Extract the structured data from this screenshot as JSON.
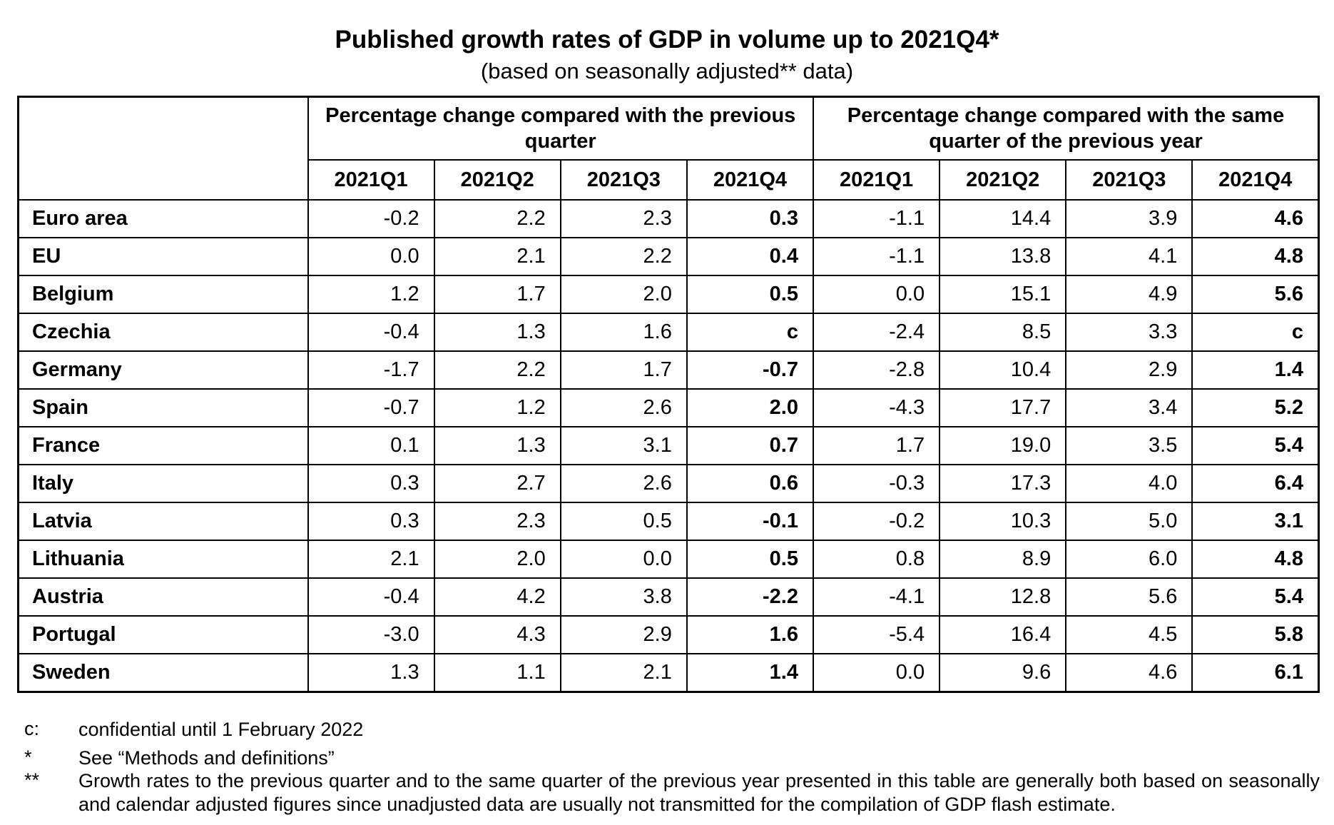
{
  "header": {
    "title": "Published growth rates of GDP in volume up to 2021Q4*",
    "subtitle": "(based on seasonally adjusted** data)"
  },
  "table": {
    "groups": [
      "Percentage change compared with the previous quarter",
      "Percentage change compared with the same quarter of the previous year"
    ],
    "columns": [
      "2021Q1",
      "2021Q2",
      "2021Q3",
      "2021Q4",
      "2021Q1",
      "2021Q2",
      "2021Q3",
      "2021Q4"
    ],
    "rows": [
      {
        "label": "Euro area",
        "values": [
          "-0.2",
          "2.2",
          "2.3",
          "0.3",
          "-1.1",
          "14.4",
          "3.9",
          "4.6"
        ]
      },
      {
        "label": "EU",
        "values": [
          "0.0",
          "2.1",
          "2.2",
          "0.4",
          "-1.1",
          "13.8",
          "4.1",
          "4.8"
        ]
      },
      {
        "label": "Belgium",
        "values": [
          "1.2",
          "1.7",
          "2.0",
          "0.5",
          "0.0",
          "15.1",
          "4.9",
          "5.6"
        ]
      },
      {
        "label": "Czechia",
        "values": [
          "-0.4",
          "1.3",
          "1.6",
          "c",
          "-2.4",
          "8.5",
          "3.3",
          "c"
        ]
      },
      {
        "label": "Germany",
        "values": [
          "-1.7",
          "2.2",
          "1.7",
          "-0.7",
          "-2.8",
          "10.4",
          "2.9",
          "1.4"
        ]
      },
      {
        "label": "Spain",
        "values": [
          "-0.7",
          "1.2",
          "2.6",
          "2.0",
          "-4.3",
          "17.7",
          "3.4",
          "5.2"
        ]
      },
      {
        "label": "France",
        "values": [
          "0.1",
          "1.3",
          "3.1",
          "0.7",
          "1.7",
          "19.0",
          "3.5",
          "5.4"
        ]
      },
      {
        "label": "Italy",
        "values": [
          "0.3",
          "2.7",
          "2.6",
          "0.6",
          "-0.3",
          "17.3",
          "4.0",
          "6.4"
        ]
      },
      {
        "label": "Latvia",
        "values": [
          "0.3",
          "2.3",
          "0.5",
          "-0.1",
          "-0.2",
          "10.3",
          "5.0",
          "3.1"
        ]
      },
      {
        "label": "Lithuania",
        "values": [
          "2.1",
          "2.0",
          "0.0",
          "0.5",
          "0.8",
          "8.9",
          "6.0",
          "4.8"
        ]
      },
      {
        "label": "Austria",
        "values": [
          "-0.4",
          "4.2",
          "3.8",
          "-2.2",
          "-4.1",
          "12.8",
          "5.6",
          "5.4"
        ]
      },
      {
        "label": "Portugal",
        "values": [
          "-3.0",
          "4.3",
          "2.9",
          "1.6",
          "-5.4",
          "16.4",
          "4.5",
          "5.8"
        ]
      },
      {
        "label": "Sweden",
        "values": [
          "1.3",
          "1.1",
          "2.1",
          "1.4",
          "0.0",
          "9.6",
          "4.6",
          "6.1"
        ]
      }
    ]
  },
  "notes": [
    {
      "marker": "c:",
      "text": "confidential until 1 February 2022"
    },
    {
      "marker": "*",
      "text": "See “Methods and definitions”"
    },
    {
      "marker": "**",
      "text": "Growth rates to the previous quarter and to the same quarter of the previous year presented in this table are generally both based on seasonally and calendar adjusted figures since unadjusted data are usually not transmitted for the compilation of GDP flash estimate."
    }
  ]
}
